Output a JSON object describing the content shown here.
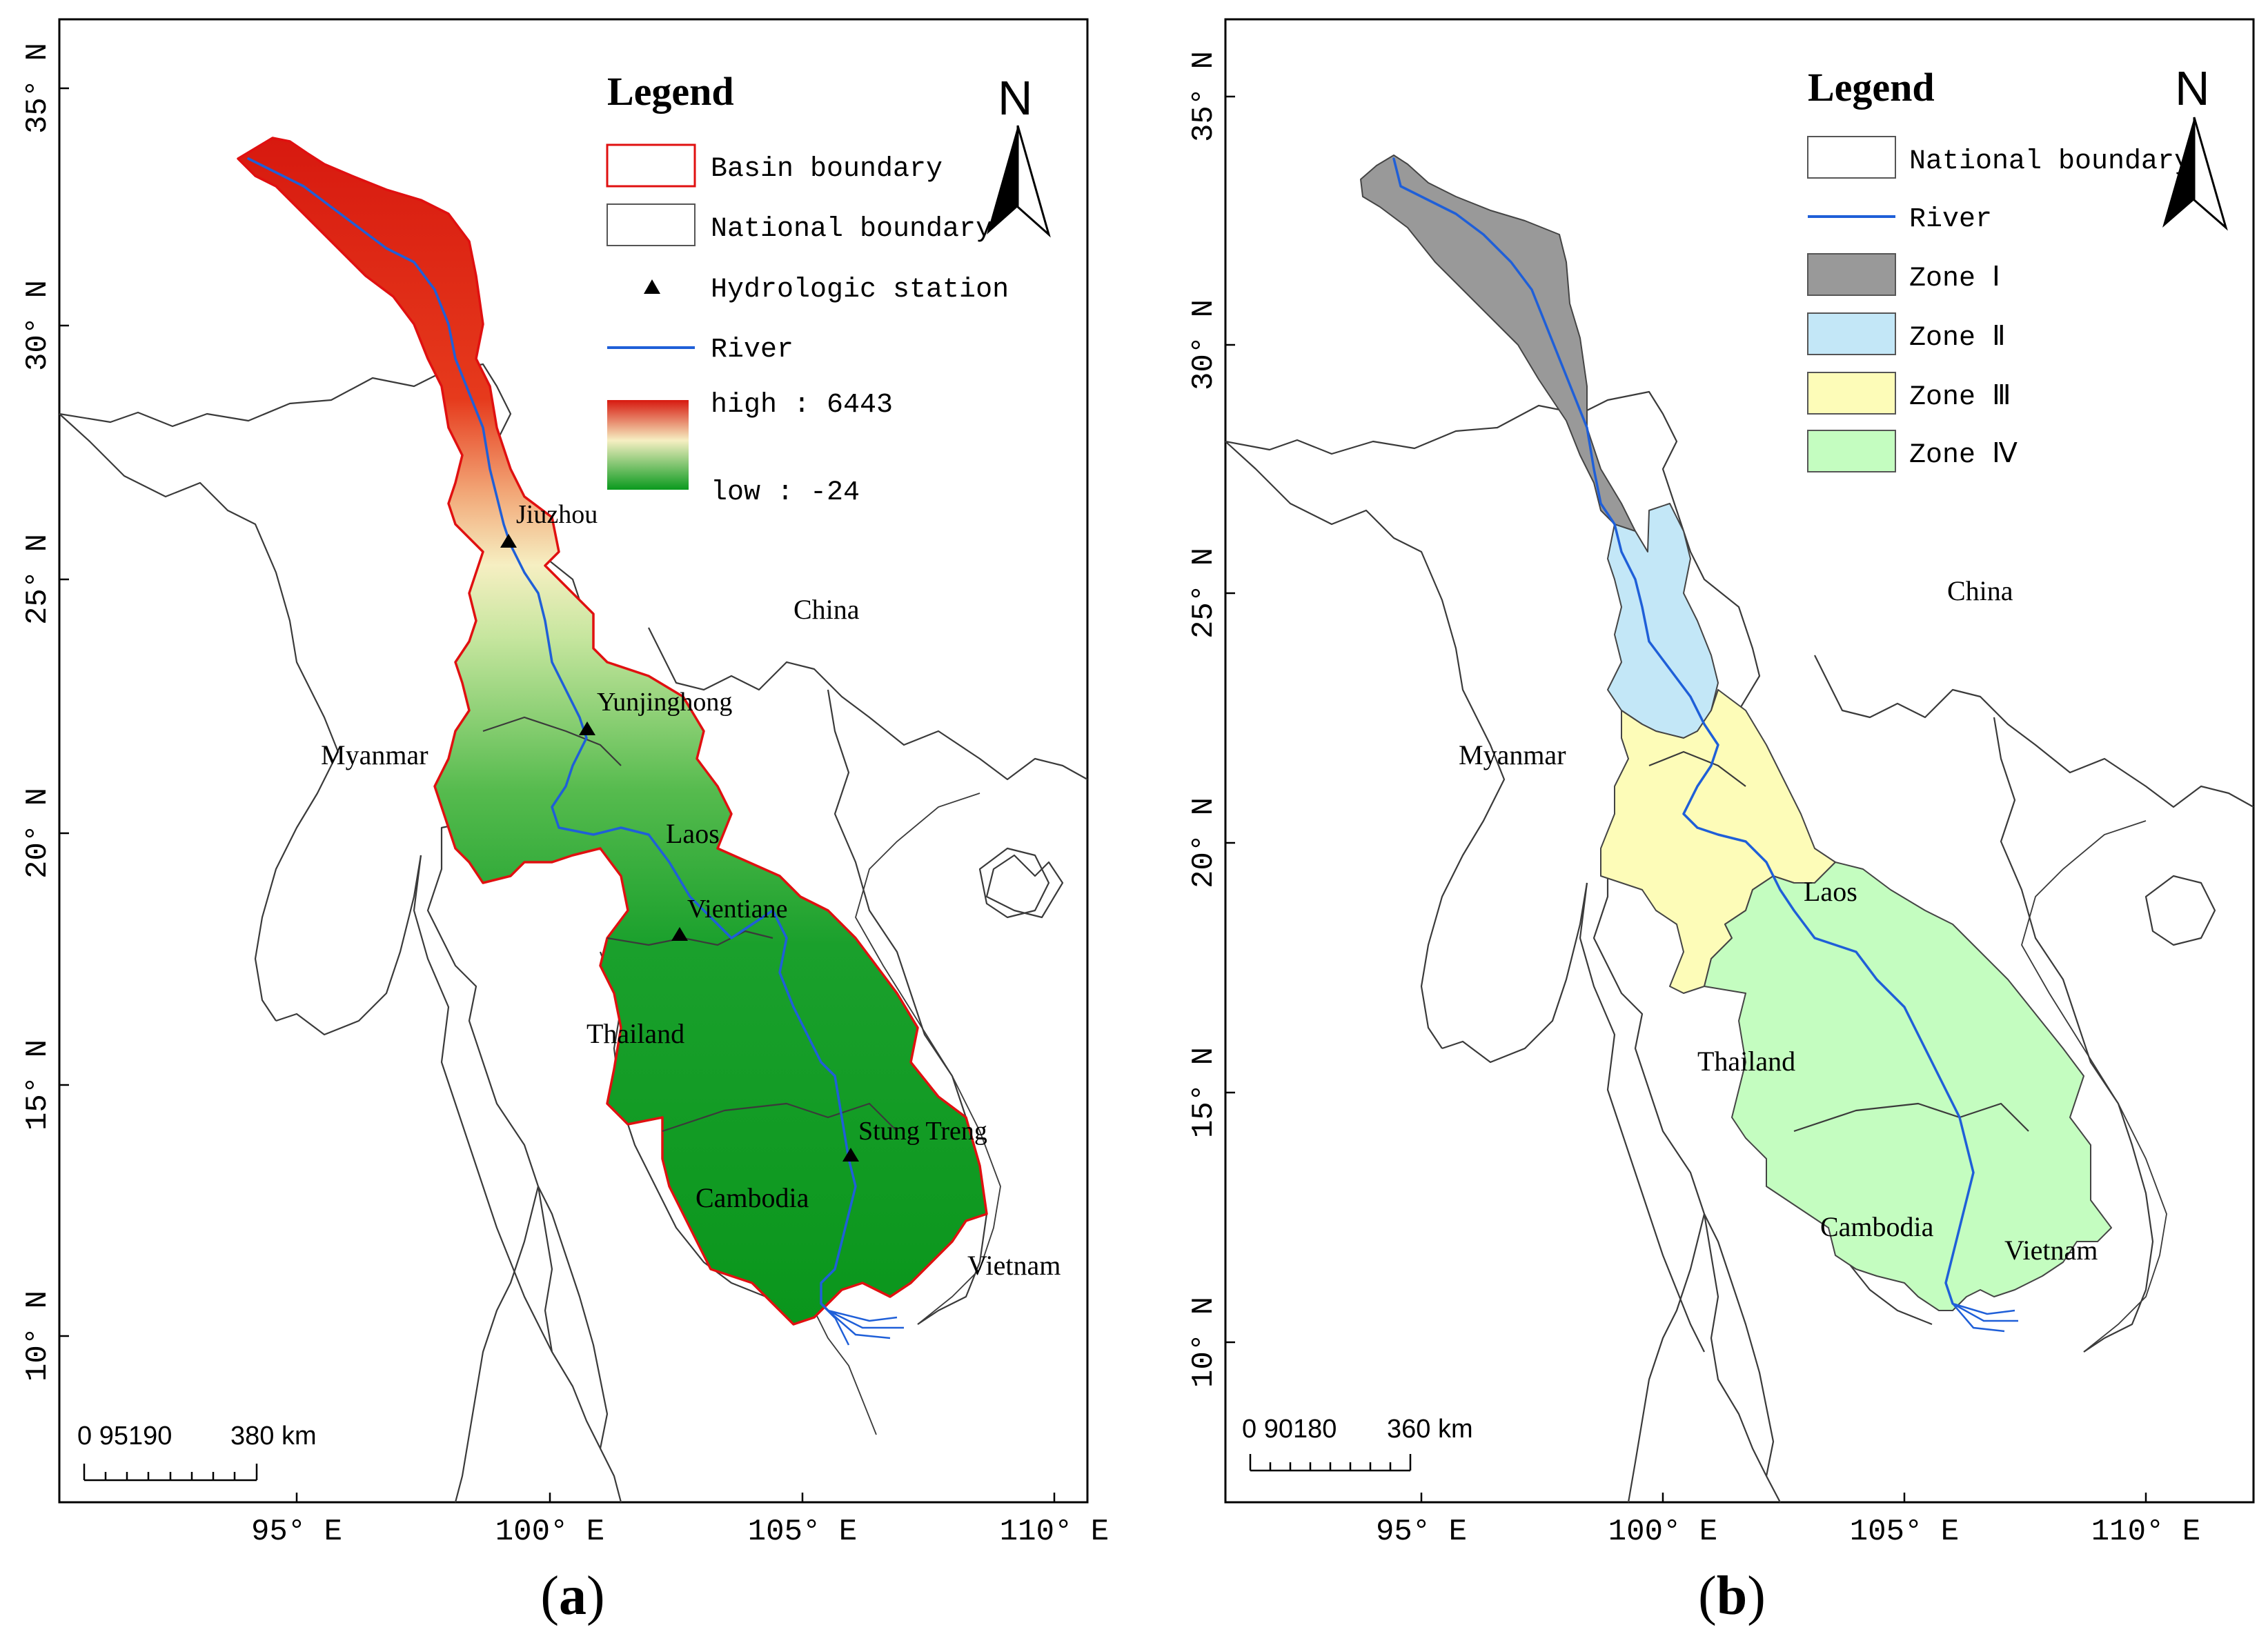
{
  "panel_a": {
    "label_open": "(",
    "label_letter": "a",
    "label_close": ")",
    "legend": {
      "title": "Legend",
      "basin_boundary": "Basin boundary",
      "national_boundary": "National boundary",
      "hydrologic_station": "Hydrologic station",
      "river": "River",
      "dem_high": "high : 6443",
      "dem_low": "low : -24"
    },
    "north_label": "N",
    "lat_ticks": [
      "35° N",
      "30° N",
      "25° N",
      "20° N",
      "15° N",
      "10° N"
    ],
    "lon_ticks": [
      "95° E",
      "100° E",
      "105° E",
      "110° E"
    ],
    "countries": {
      "china": "China",
      "myanmar": "Myanmar",
      "laos": "Laos",
      "thailand": "Thailand",
      "cambodia": "Cambodia",
      "vietnam": "Vietnam"
    },
    "stations": [
      "Jiuzhou",
      "Yunjinghong",
      "Vientiane",
      "Stung Treng"
    ],
    "scale_bar": {
      "numbers": "0  95190",
      "end": "380 km"
    }
  },
  "panel_b": {
    "label_open": "(",
    "label_letter": "b",
    "label_close": ")",
    "legend": {
      "title": "Legend",
      "national_boundary": "National boundary",
      "river": "River",
      "zone1": "Zone Ⅰ",
      "zone2": "Zone Ⅱ",
      "zone3": "Zone Ⅲ",
      "zone4": "Zone Ⅳ"
    },
    "north_label": "N",
    "lat_ticks": [
      "35° N",
      "30° N",
      "25° N",
      "20° N",
      "15° N",
      "10° N"
    ],
    "lon_ticks": [
      "95° E",
      "100° E",
      "105° E",
      "110° E"
    ],
    "countries": {
      "china": "China",
      "myanmar": "Myanmar",
      "laos": "Laos",
      "thailand": "Thailand",
      "cambodia": "Cambodia",
      "vietnam": "Vietnam"
    },
    "scale_bar": {
      "numbers": "0  90180",
      "end": "360 km"
    }
  },
  "colors": {
    "basin_boundary": "#e01010",
    "river": "#1f5fd8",
    "dem_high": "#d7190f",
    "dem_mid": "#f6f0c0",
    "dem_low": "#0a9a1e",
    "zone1": "#999999",
    "zone2": "#c3e7f7",
    "zone3": "#fdfcb8",
    "zone4": "#c4fdc0"
  }
}
